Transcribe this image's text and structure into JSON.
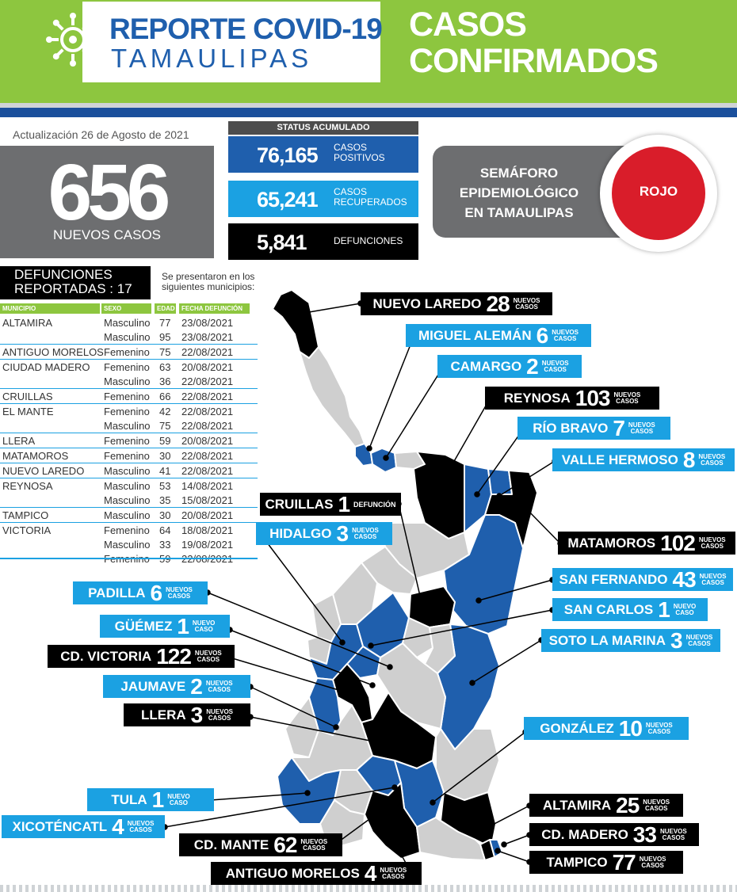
{
  "header": {
    "title_line1": "REPORTE COVID-19",
    "title_line2": "TAMAULIPAS",
    "section_line1": "CASOS",
    "section_line2": "CONFIRMADOS",
    "logo_icon": "virus-icon"
  },
  "update": "Actualización 26 de Agosto de 2021",
  "new_cases": {
    "value": "656",
    "label": "NUEVOS CASOS"
  },
  "status": {
    "title": "STATUS ACUMULADO",
    "positivos": {
      "value": "76,165",
      "label_line1": "CASOS",
      "label_line2": "POSITIVOS"
    },
    "recuperados": {
      "value": "65,241",
      "label_line1": "CASOS",
      "label_line2": "RECUPERADOS"
    },
    "defunciones": {
      "value": "5,841",
      "label": "DEFUNCIONES"
    }
  },
  "semaforo": {
    "line1": "SEMÁFORO",
    "line2": "EPIDEMIOLÓGICO",
    "line3": "EN TAMAULIPAS",
    "status": "ROJO",
    "status_color": "#d91d2a"
  },
  "deaths": {
    "title_line1": "DEFUNCIONES",
    "title_line2": "REPORTADAS : 17",
    "note_line1": "Se presentaron en los",
    "note_line2": "siguientes municipios:",
    "headers": {
      "municipio": "MUNICIPIO",
      "sexo": "SEXO",
      "edad": "EDAD",
      "fecha": "FECHA DEFUNCIÓN"
    },
    "rows": [
      {
        "municipio": "ALTAMIRA",
        "sexo": "Masculino",
        "edad": "77",
        "fecha": "23/08/2021",
        "group_start": true
      },
      {
        "municipio": "",
        "sexo": "Masculino",
        "edad": "95",
        "fecha": "23/08/2021",
        "group_start": false
      },
      {
        "municipio": "ANTIGUO MORELOS",
        "sexo": "Femenino",
        "edad": "75",
        "fecha": "22/08/2021",
        "group_start": true
      },
      {
        "municipio": "CIUDAD MADERO",
        "sexo": "Femenino",
        "edad": "63",
        "fecha": "20/08/2021",
        "group_start": true
      },
      {
        "municipio": "",
        "sexo": "Masculino",
        "edad": "36",
        "fecha": "22/08/2021",
        "group_start": false
      },
      {
        "municipio": "CRUILLAS",
        "sexo": "Femenino",
        "edad": "66",
        "fecha": "22/08/2021",
        "group_start": true
      },
      {
        "municipio": "EL MANTE",
        "sexo": "Femenino",
        "edad": "42",
        "fecha": "22/08/2021",
        "group_start": true
      },
      {
        "municipio": "",
        "sexo": "Masculino",
        "edad": "75",
        "fecha": "22/08/2021",
        "group_start": false
      },
      {
        "municipio": "LLERA",
        "sexo": "Femenino",
        "edad": "59",
        "fecha": "20/08/2021",
        "group_start": true
      },
      {
        "municipio": "MATAMOROS",
        "sexo": "Femenino",
        "edad": "30",
        "fecha": "22/08/2021",
        "group_start": true
      },
      {
        "municipio": "NUEVO LAREDO",
        "sexo": "Masculino",
        "edad": "41",
        "fecha": "22/08/2021",
        "group_start": true
      },
      {
        "municipio": "REYNOSA",
        "sexo": "Masculino",
        "edad": "53",
        "fecha": "14/08/2021",
        "group_start": true
      },
      {
        "municipio": "",
        "sexo": "Masculino",
        "edad": "35",
        "fecha": "15/08/2021",
        "group_start": false
      },
      {
        "municipio": "TAMPICO",
        "sexo": "Masculino",
        "edad": "30",
        "fecha": "20/08/2021",
        "group_start": true
      },
      {
        "municipio": "VICTORIA",
        "sexo": "Femenino",
        "edad": "64",
        "fecha": "18/08/2021",
        "group_start": true
      },
      {
        "municipio": "",
        "sexo": "Masculino",
        "edad": "33",
        "fecha": "19/08/2021",
        "group_start": false
      },
      {
        "municipio": "",
        "sexo": "Femenino",
        "edad": "59",
        "fecha": "22/08/2021",
        "group_start": false
      }
    ]
  },
  "callouts": {
    "nuevo_laredo": {
      "name": "NUEVO LAREDO",
      "count": "28",
      "suffix_line1": "NUEVOS",
      "suffix_line2": "CASOS"
    },
    "miguel_aleman": {
      "name": "MIGUEL ALEMÁN",
      "count": "6",
      "suffix_line1": "NUEVOS",
      "suffix_line2": "CASOS"
    },
    "camargo": {
      "name": "CAMARGO",
      "count": "2",
      "suffix_line1": "NUEVOS",
      "suffix_line2": "CASOS"
    },
    "reynosa": {
      "name": "REYNOSA",
      "count": "103",
      "suffix_line1": "NUEVOS",
      "suffix_line2": "CASOS"
    },
    "rio_bravo": {
      "name": "RÍO BRAVO",
      "count": "7",
      "suffix_line1": "NUEVOS",
      "suffix_line2": "CASOS"
    },
    "valle_hermoso": {
      "name": "VALLE HERMOSO",
      "count": "8",
      "suffix_line1": "NUEVOS",
      "suffix_line2": "CASOS"
    },
    "cruillas": {
      "name": "CRUILLAS",
      "count": "1",
      "suffix": "DEFUNCIÓN"
    },
    "hidalgo": {
      "name": "HIDALGO",
      "count": "3",
      "suffix_line1": "NUEVOS",
      "suffix_line2": "CASOS"
    },
    "matamoros": {
      "name": "MATAMOROS",
      "count": "102",
      "suffix_line1": "NUEVOS",
      "suffix_line2": "CASOS"
    },
    "san_fernando": {
      "name": "SAN FERNANDO",
      "count": "43",
      "suffix_line1": "NUEVOS",
      "suffix_line2": "CASOS"
    },
    "san_carlos": {
      "name": "SAN CARLOS",
      "count": "1",
      "suffix_line1": "NUEVO",
      "suffix_line2": "CASO"
    },
    "soto_la_marina": {
      "name": "SOTO LA MARINA",
      "count": "3",
      "suffix_line1": "NUEVOS",
      "suffix_line2": "CASOS"
    },
    "padilla": {
      "name": "PADILLA",
      "count": "6",
      "suffix_line1": "NUEVOS",
      "suffix_line2": "CASOS"
    },
    "guemez": {
      "name": "GÜÉMEZ",
      "count": "1",
      "suffix_line1": "NUEVO",
      "suffix_line2": "CASO"
    },
    "cd_victoria": {
      "name": "CD. VICTORIA",
      "count": "122",
      "suffix_line1": "NUEVOS",
      "suffix_line2": "CASOS"
    },
    "jaumave": {
      "name": "JAUMAVE",
      "count": "2",
      "suffix_line1": "NUEVOS",
      "suffix_line2": "CASOS"
    },
    "llera": {
      "name": "LLERA",
      "count": "3",
      "suffix_line1": "NUEVOS",
      "suffix_line2": "CASOS"
    },
    "gonzalez": {
      "name": "GONZÁLEZ",
      "count": "10",
      "suffix_line1": "NUEVOS",
      "suffix_line2": "CASOS"
    },
    "tula": {
      "name": "TULA",
      "count": "1",
      "suffix_line1": "NUEVO",
      "suffix_line2": "CASO"
    },
    "xicotencatl": {
      "name": "XICOTÉNCATL",
      "count": "4",
      "suffix_line1": "NUEVOS",
      "suffix_line2": "CASOS"
    },
    "cd_mante": {
      "name": "CD. MANTE",
      "count": "62",
      "suffix_line1": "NUEVOS",
      "suffix_line2": "CASOS"
    },
    "altamira": {
      "name": "ALTAMIRA",
      "count": "25",
      "suffix_line1": "NUEVOS",
      "suffix_line2": "CASOS"
    },
    "cd_madero": {
      "name": "CD. MADERO",
      "count": "33",
      "suffix_line1": "NUEVOS",
      "suffix_line2": "CASOS"
    },
    "antiguo_morelos": {
      "name": "ANTIGUO MORELOS",
      "count": "4",
      "suffix_line1": "NUEVOS",
      "suffix_line2": "CASOS"
    },
    "tampico": {
      "name": "TAMPICO",
      "count": "77",
      "suffix_line1": "NUEVOS",
      "suffix_line2": "CASOS"
    }
  },
  "colors": {
    "green": "#8dc63f",
    "blue_dark": "#1f5fad",
    "blue_light": "#1ba1e2",
    "gray": "#6d6e70",
    "red": "#d91d2a",
    "black": "#000000"
  }
}
